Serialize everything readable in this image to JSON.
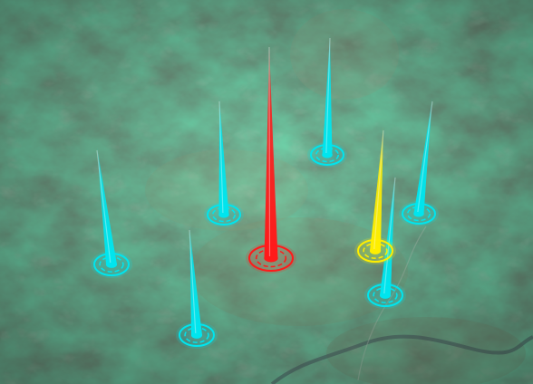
{
  "map": {
    "type": "satellite-3d",
    "markers": [
      {
        "id": "marker-1",
        "color": "#ff1a1a",
        "status": "alert"
      },
      {
        "id": "marker-2",
        "color": "#00e5ee",
        "status": "normal"
      },
      {
        "id": "marker-3",
        "color": "#00e5ee",
        "status": "normal"
      },
      {
        "id": "marker-4",
        "color": "#00e5ee",
        "status": "normal"
      },
      {
        "id": "marker-5",
        "color": "#00e5ee",
        "status": "normal"
      },
      {
        "id": "marker-6",
        "color": "#00e5ee",
        "status": "normal"
      },
      {
        "id": "marker-7",
        "color": "#00e5ee",
        "status": "normal"
      },
      {
        "id": "marker-8",
        "color": "#ffee00",
        "status": "warning"
      }
    ]
  }
}
